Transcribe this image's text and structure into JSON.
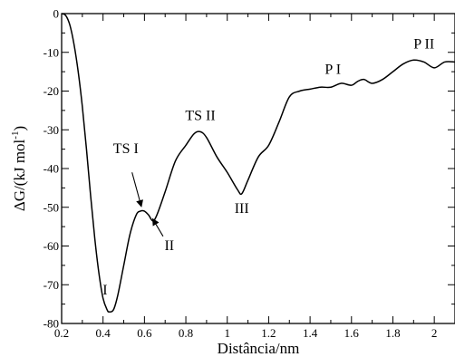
{
  "chart_data": {
    "type": "line",
    "title": "",
    "xlabel": "Distância/nm",
    "ylabel_main": "ΔG/(kJ mol",
    "ylabel_sup": "-1",
    "ylabel_close": ")",
    "xlim": [
      0.2,
      2.1
    ],
    "ylim": [
      -80,
      0
    ],
    "grid": false,
    "x_ticks": [
      "0.2",
      "0.4",
      "0.6",
      "0.8",
      "1",
      "1.2",
      "1.4",
      "1.6",
      "1.8",
      "2"
    ],
    "y_ticks": [
      "0",
      "-10",
      "-20",
      "-30",
      "-40",
      "-50",
      "-60",
      "-70",
      "-80"
    ],
    "series": [
      {
        "x": [
          0.2,
          0.22,
          0.24,
          0.26,
          0.28,
          0.3,
          0.32,
          0.34,
          0.36,
          0.38,
          0.4,
          0.42,
          0.43,
          0.45,
          0.47,
          0.5,
          0.53,
          0.56,
          0.58,
          0.6,
          0.62,
          0.64,
          0.66,
          0.7,
          0.75,
          0.8,
          0.84,
          0.87,
          0.9,
          0.95,
          1.0,
          1.05,
          1.07,
          1.1,
          1.15,
          1.2,
          1.25,
          1.3,
          1.35,
          1.4,
          1.45,
          1.5,
          1.55,
          1.6,
          1.63,
          1.66,
          1.7,
          1.75,
          1.8,
          1.85,
          1.9,
          1.95,
          2.0,
          2.05,
          2.1
        ],
        "y": [
          0,
          -0.5,
          -3,
          -8,
          -15,
          -24,
          -35,
          -47,
          -58,
          -67,
          -73.5,
          -76.5,
          -77,
          -76.5,
          -73,
          -65,
          -57,
          -52,
          -51,
          -51,
          -52,
          -53.5,
          -52,
          -46,
          -38,
          -34,
          -31,
          -30.5,
          -32,
          -37,
          -41,
          -45.5,
          -46.5,
          -43,
          -37,
          -34,
          -28,
          -21.5,
          -20,
          -19.5,
          -19,
          -19,
          -18,
          -18.5,
          -17.5,
          -17,
          -18,
          -17,
          -15,
          -13,
          -12,
          -12.5,
          -14,
          -12.5,
          -12.5
        ]
      }
    ],
    "annotations": [
      {
        "text": "I",
        "x": 0.41,
        "y": -72.5
      },
      {
        "text": "TS I",
        "x": 0.51,
        "y": -36
      },
      {
        "text": "II",
        "x": 0.72,
        "y": -61
      },
      {
        "text": "TS II",
        "x": 0.87,
        "y": -27.5
      },
      {
        "text": "III",
        "x": 1.07,
        "y": -51.5
      },
      {
        "text": "P I",
        "x": 1.51,
        "y": -15.5
      },
      {
        "text": "P II",
        "x": 1.95,
        "y": -9
      }
    ],
    "arrows": [
      {
        "from": [
          0.54,
          -41
        ],
        "to": [
          0.585,
          -49.8
        ]
      },
      {
        "from": [
          0.69,
          -57.5
        ],
        "to": [
          0.64,
          -53
        ]
      }
    ]
  }
}
